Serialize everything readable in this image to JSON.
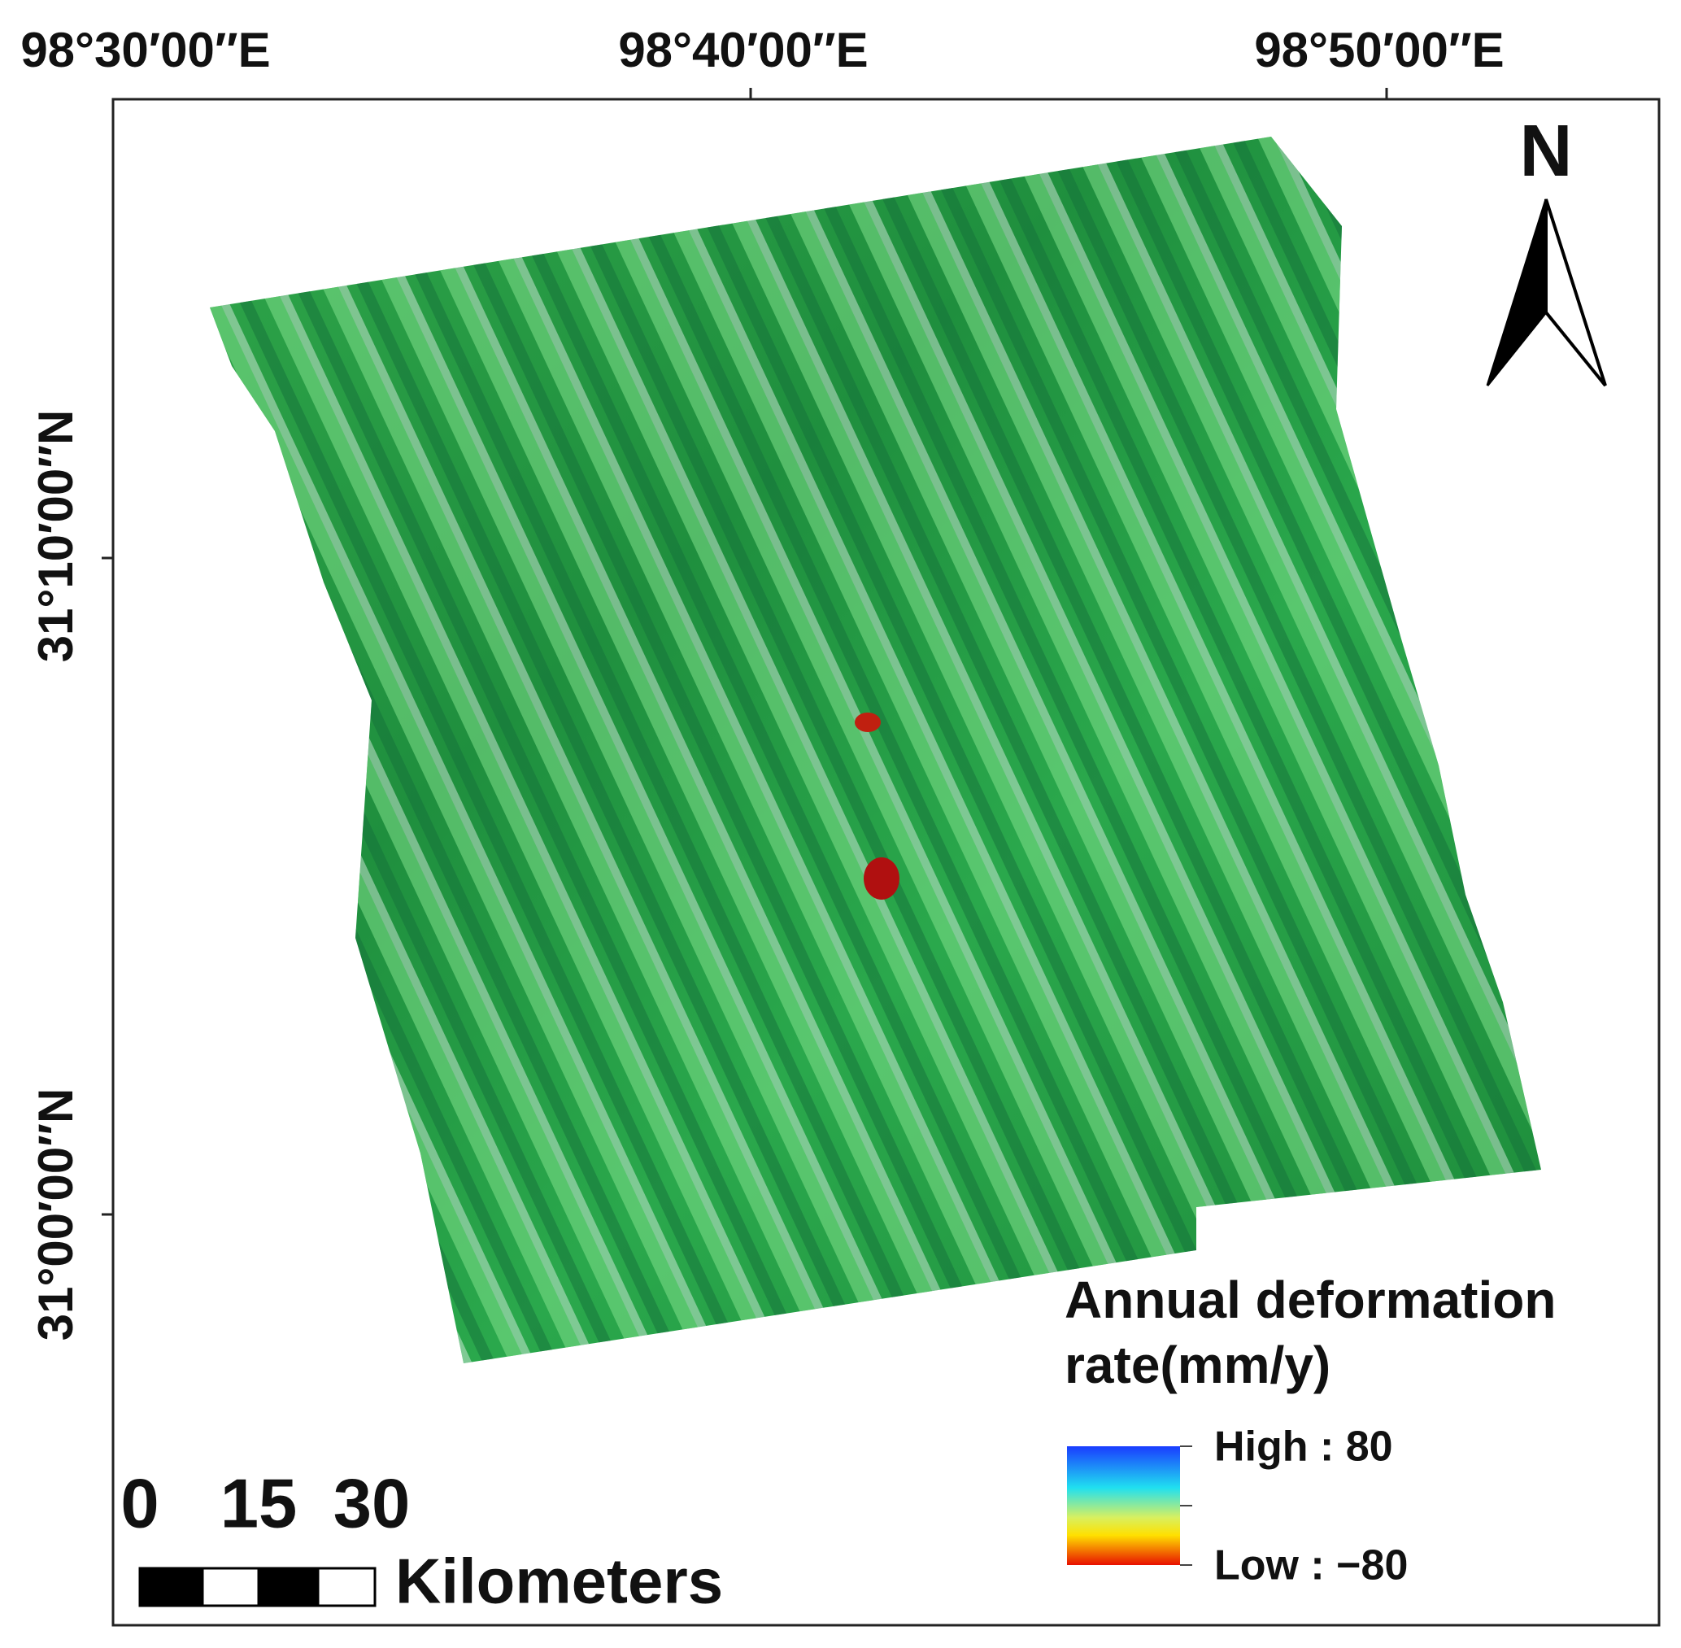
{
  "map": {
    "longitude_labels": [
      "98°30′00″E",
      "98°40′00″E",
      "98°50′00″E"
    ],
    "latitude_labels": [
      "31°10′00″N",
      "31°00′00″N"
    ],
    "north": "N",
    "legend": {
      "title_line1": "Annual deformation",
      "title_line2": "rate(mm/y)",
      "high": "High : 80",
      "low": "Low :  −80"
    },
    "scale_bar": {
      "labels": [
        "0",
        "15",
        "30"
      ],
      "unit": "Kilometers"
    }
  }
}
